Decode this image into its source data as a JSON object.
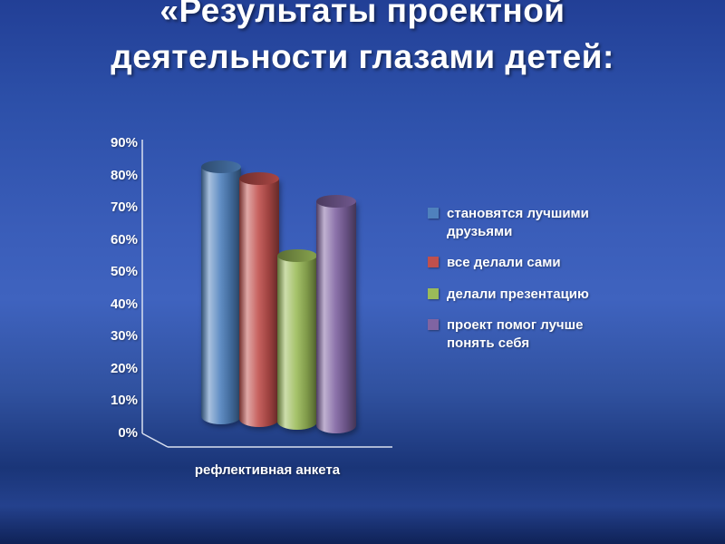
{
  "slide": {
    "title": "«Результаты проектной деятельности глазами детей:",
    "background_top_color": "#223f96",
    "background_mid_color": "#3f63bf",
    "background_bottom_color": "#0f2257",
    "text_color": "#ffffff"
  },
  "chart_data": {
    "type": "bar",
    "style": "3d-cylinder",
    "title": "",
    "xlabel": "рефлективная анкета",
    "ylabel": "",
    "categories": [
      "рефлективная анкета"
    ],
    "series": [
      {
        "name": "становятся лучшими друзьями",
        "values": [
          80
        ],
        "color": "#4f81bd"
      },
      {
        "name": "все делали сами",
        "values": [
          77
        ],
        "color": "#c0504d"
      },
      {
        "name": "делали презентацию",
        "values": [
          54
        ],
        "color": "#9bbb59"
      },
      {
        "name": "проект помог лучше понять себя",
        "values": [
          72
        ],
        "color": "#8064a2"
      }
    ],
    "ylim": [
      0,
      90
    ],
    "ytick_step": 10,
    "ytick_labels": [
      "0%",
      "10%",
      "20%",
      "30%",
      "40%",
      "50%",
      "60%",
      "70%",
      "80%",
      "90%"
    ],
    "grid": false,
    "legend_position": "right"
  }
}
